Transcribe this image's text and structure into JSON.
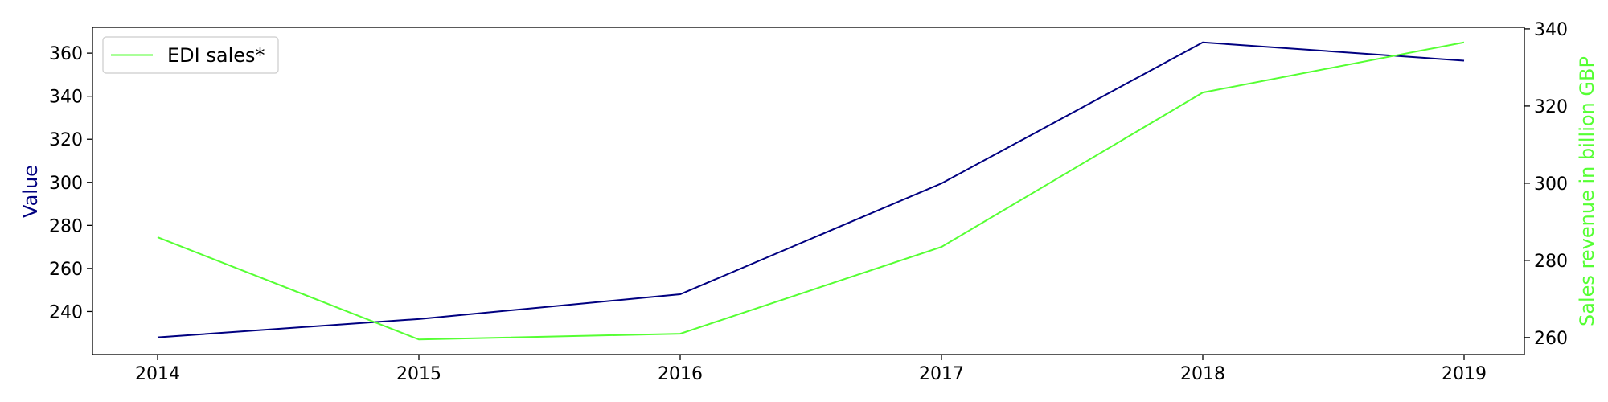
{
  "chart_data": {
    "type": "line",
    "title": "",
    "xlabel": "",
    "x": [
      "2014",
      "2015",
      "2016",
      "2017",
      "2018",
      "2019"
    ],
    "y_left": {
      "label": "Value",
      "color": "#000080",
      "ylim": [
        220,
        372
      ],
      "ticks": [
        240,
        260,
        280,
        300,
        320,
        340,
        360
      ]
    },
    "y_right": {
      "label": "Sales revenue in billion GBP",
      "color": "#55ff33",
      "ylim": [
        255.6,
        340.4
      ],
      "ticks": [
        260,
        280,
        300,
        320,
        340
      ]
    },
    "series": [
      {
        "axis": "left",
        "color": "#000080",
        "values": [
          228,
          236.5,
          248,
          299.5,
          365,
          356.5
        ]
      },
      {
        "name": "EDI sales*",
        "axis": "right",
        "color": "#55ff33",
        "values": [
          286,
          259.5,
          261,
          283.5,
          323.5,
          336.5
        ]
      }
    ],
    "legend": {
      "position": "top-left",
      "entries": [
        "EDI sales*"
      ]
    },
    "grid": false
  }
}
